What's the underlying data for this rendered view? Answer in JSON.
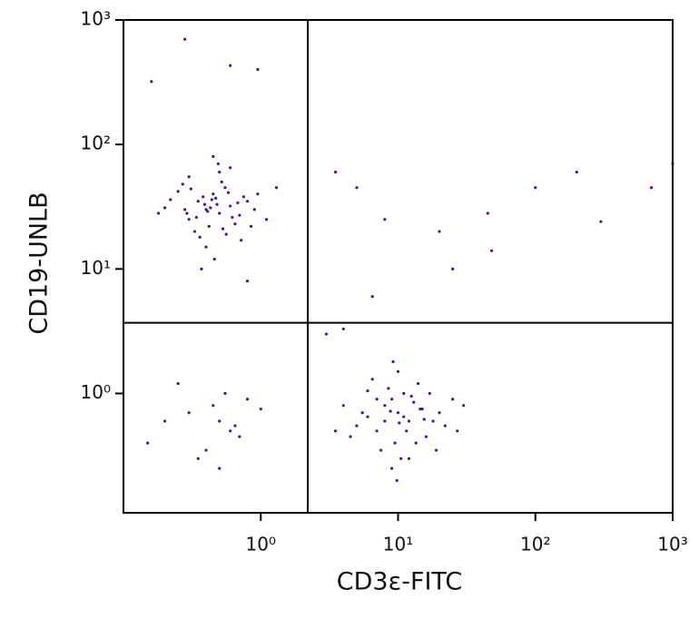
{
  "chart_data": {
    "type": "scatter",
    "x_label": "CD3ε-FITC",
    "y_label": "CD19-UNLB",
    "xscale": "log",
    "yscale": "log",
    "xlim": [
      0.1,
      1000
    ],
    "ylim": [
      0.11,
      1000
    ],
    "xticks": [
      {
        "value": 1,
        "label": "10⁰"
      },
      {
        "value": 10,
        "label": "10¹"
      },
      {
        "value": 100,
        "label": "10²"
      },
      {
        "value": 1000,
        "label": "10³"
      }
    ],
    "yticks": [
      {
        "value": 1,
        "label": "10⁰"
      },
      {
        "value": 10,
        "label": "10¹"
      },
      {
        "value": 100,
        "label": "10²"
      },
      {
        "value": 1000,
        "label": "10³"
      }
    ],
    "quadrant_gates": {
      "x": 2.2,
      "y": 3.7
    },
    "color": "#4a148c",
    "x": [
      0.4,
      0.35,
      0.5,
      0.45,
      0.3,
      0.6,
      0.55,
      0.42,
      0.38,
      0.28,
      0.7,
      0.8,
      0.25,
      0.33,
      0.48,
      0.52,
      0.62,
      0.9,
      0.2,
      0.44,
      0.36,
      0.58,
      0.65,
      0.3,
      0.4,
      0.5,
      0.75,
      1.1,
      0.18,
      0.46,
      0.39,
      0.41,
      0.53,
      0.27,
      0.68,
      0.95,
      0.34,
      0.47,
      0.56,
      0.31,
      0.43,
      0.6,
      0.22,
      0.85,
      1.3,
      0.37,
      0.49,
      0.29,
      0.72,
      0.45,
      10,
      8,
      12,
      9,
      15,
      7,
      11,
      6,
      13,
      20,
      5,
      9.5,
      14,
      10.5,
      8.5,
      18,
      4,
      25,
      7.5,
      11.5,
      16,
      6.5,
      12.5,
      9,
      10,
      22,
      5.5,
      13.5,
      8,
      30,
      3.5,
      17,
      9.8,
      11,
      7,
      14.5,
      19,
      6,
      10.2,
      12,
      8.8,
      4.5,
      15.5,
      9.2,
      27,
      0.5,
      0.45,
      0.6,
      0.3,
      0.7,
      0.55,
      0.4,
      0.2,
      0.8,
      0.35,
      0.65,
      0.15,
      1.0,
      0.5,
      0.25,
      0.28,
      0.6,
      0.95,
      0.16,
      3.5,
      5,
      8,
      20,
      45,
      200,
      700,
      1000,
      100,
      300,
      48,
      6.5,
      25,
      3,
      4,
      0.8
    ],
    "values": [
      30,
      35,
      28,
      40,
      25,
      32,
      45,
      22,
      38,
      30,
      27,
      35,
      42,
      20,
      33,
      50,
      26,
      30,
      31,
      36,
      18,
      41,
      23,
      55,
      15,
      60,
      38,
      25,
      28,
      12,
      33,
      29,
      21,
      48,
      34,
      40,
      26,
      37,
      19,
      44,
      31,
      65,
      36,
      22,
      45,
      10,
      70,
      28,
      17,
      80,
      0.7,
      0.8,
      0.6,
      0.9,
      0.75,
      0.5,
      1.0,
      0.65,
      0.85,
      0.7,
      0.55,
      0.4,
      1.2,
      0.3,
      1.1,
      0.6,
      0.8,
      0.9,
      0.35,
      0.5,
      0.45,
      1.3,
      0.95,
      0.25,
      1.5,
      0.55,
      0.7,
      0.4,
      0.6,
      0.8,
      0.5,
      1.0,
      0.2,
      0.65,
      0.9,
      0.75,
      0.35,
      1.05,
      0.58,
      0.3,
      0.72,
      0.45,
      0.62,
      1.8,
      0.5,
      0.6,
      0.8,
      0.5,
      0.7,
      0.45,
      1.0,
      0.35,
      0.6,
      0.9,
      0.3,
      0.55,
      0.4,
      0.75,
      0.25,
      1.2,
      700,
      430,
      400,
      320,
      60,
      45,
      25,
      20,
      28,
      60,
      45,
      70,
      45,
      24,
      14,
      6,
      10,
      3,
      3.3,
      8
    ]
  }
}
